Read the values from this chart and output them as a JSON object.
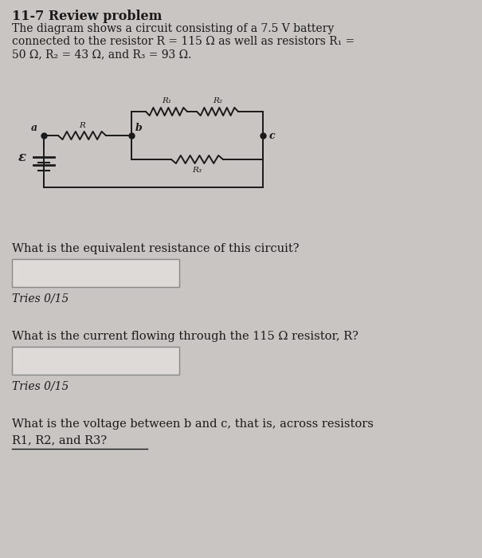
{
  "title": "11-7 Review problem",
  "line1": "The diagram shows a circuit consisting of a 7.5 V battery",
  "line2": "connected to the resistor R = 115 Ω as well as resistors R₁ =",
  "line3": "50 Ω, R₂ = 43 Ω, and R₃ = 93 Ω.",
  "q1": "What is the equivalent resistance of this circuit?",
  "q1_tries": "Tries 0/15",
  "q2": "What is the current flowing through the 115 Ω resistor, R?",
  "q2_tries": "Tries 0/15",
  "q3_line1": "What is the voltage between b and c, that is, across resistors",
  "q3_line2": "R1, R2, and R3?",
  "bg_color": "#c8c5c2",
  "text_color": "#1a1a1a",
  "input_box_facecolor": "#dedad7",
  "input_box_edgecolor": "#888888",
  "circuit_color": "#1a1a1a"
}
